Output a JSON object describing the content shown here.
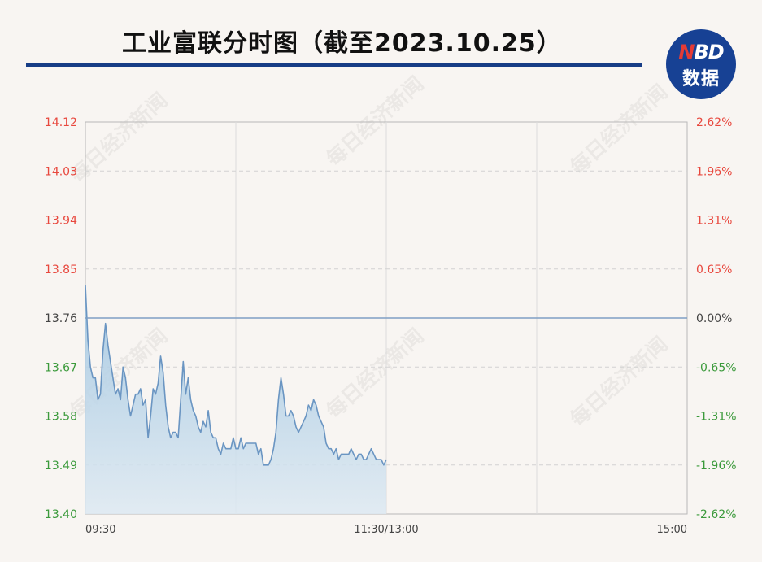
{
  "header": {
    "title": "工业富联分时图（截至2023.10.25）"
  },
  "logo": {
    "letter_n": "N",
    "letters_bd": "BD",
    "subtitle": "数据"
  },
  "watermark_text": "每日经济新闻",
  "colors": {
    "title_rule": "#173d86",
    "logo_bg": "#174194",
    "logo_accent": "#e53b35",
    "up": "#e8483e",
    "down": "#3b9a3b",
    "flat": "#444444",
    "line": "#6a95c2",
    "area_top": "#9cc3e0",
    "area_bottom": "#dde9f2",
    "grid": "#d2d2d2",
    "axis": "#b8b8b8"
  },
  "chart_data": {
    "type": "area",
    "title": "工业富联分时图（截至2023.10.25）",
    "prev_close": 13.76,
    "ylim": [
      13.4,
      14.12
    ],
    "y_ticks_left": [
      "14.12",
      "14.03",
      "13.94",
      "13.85",
      "13.76",
      "13.67",
      "13.58",
      "13.49",
      "13.40"
    ],
    "y_ticks_right": [
      "2.62%",
      "1.96%",
      "1.31%",
      "0.65%",
      "0.00%",
      "-0.65%",
      "-1.31%",
      "-1.96%",
      "-2.62%"
    ],
    "x_ticks": [
      "09:30",
      "11:30/13:00",
      "15:00"
    ],
    "session_minutes": 240,
    "grid": true,
    "series": [
      {
        "minute": [
          0,
          1,
          2,
          3,
          4,
          5,
          6,
          7,
          8,
          9,
          10,
          11,
          12,
          13,
          14,
          15,
          16,
          17,
          18,
          19,
          20,
          21,
          22,
          23,
          24,
          25,
          26,
          27,
          28,
          29,
          30,
          31,
          32,
          33,
          34,
          35,
          36,
          37,
          38,
          39,
          40,
          41,
          42,
          43,
          44,
          45,
          46,
          47,
          48,
          49,
          50,
          51,
          52,
          53,
          54,
          55,
          56,
          57,
          58,
          59,
          60,
          61,
          62,
          63,
          64,
          65,
          66,
          67,
          68,
          69,
          70,
          71,
          72,
          73,
          74,
          75,
          76,
          77,
          78,
          79,
          80,
          81,
          82,
          83,
          84,
          85,
          86,
          87,
          88,
          89,
          90,
          91,
          92,
          93,
          94,
          95,
          96,
          97,
          98,
          99,
          100,
          101,
          102,
          103,
          104,
          105,
          106,
          107,
          108,
          109,
          110,
          111,
          112,
          113,
          114,
          115,
          116,
          117,
          118,
          119,
          120
        ],
        "price": [
          13.82,
          13.72,
          13.67,
          13.65,
          13.65,
          13.61,
          13.62,
          13.7,
          13.75,
          13.71,
          13.68,
          13.65,
          13.62,
          13.63,
          13.61,
          13.67,
          13.65,
          13.61,
          13.58,
          13.6,
          13.62,
          13.62,
          13.63,
          13.6,
          13.61,
          13.54,
          13.58,
          13.63,
          13.62,
          13.64,
          13.69,
          13.66,
          13.6,
          13.56,
          13.54,
          13.55,
          13.55,
          13.54,
          13.61,
          13.68,
          13.62,
          13.65,
          13.61,
          13.59,
          13.58,
          13.56,
          13.55,
          13.57,
          13.56,
          13.59,
          13.55,
          13.54,
          13.54,
          13.52,
          13.51,
          13.53,
          13.52,
          13.52,
          13.52,
          13.54,
          13.52,
          13.52,
          13.54,
          13.52,
          13.53,
          13.53,
          13.53,
          13.53,
          13.53,
          13.51,
          13.52,
          13.49,
          13.49,
          13.49,
          13.5,
          13.52,
          13.55,
          13.61,
          13.65,
          13.62,
          13.58,
          13.58,
          13.59,
          13.58,
          13.56,
          13.55,
          13.56,
          13.57,
          13.58,
          13.6,
          13.59,
          13.61,
          13.6,
          13.58,
          13.57,
          13.56,
          13.53,
          13.52,
          13.52,
          13.51,
          13.52,
          13.5,
          13.51,
          13.51,
          13.51,
          13.51,
          13.52,
          13.51,
          13.5,
          13.51,
          13.51,
          13.5,
          13.5,
          13.51,
          13.52,
          13.51,
          13.5,
          13.5,
          13.5,
          13.49,
          13.5
        ]
      }
    ]
  }
}
